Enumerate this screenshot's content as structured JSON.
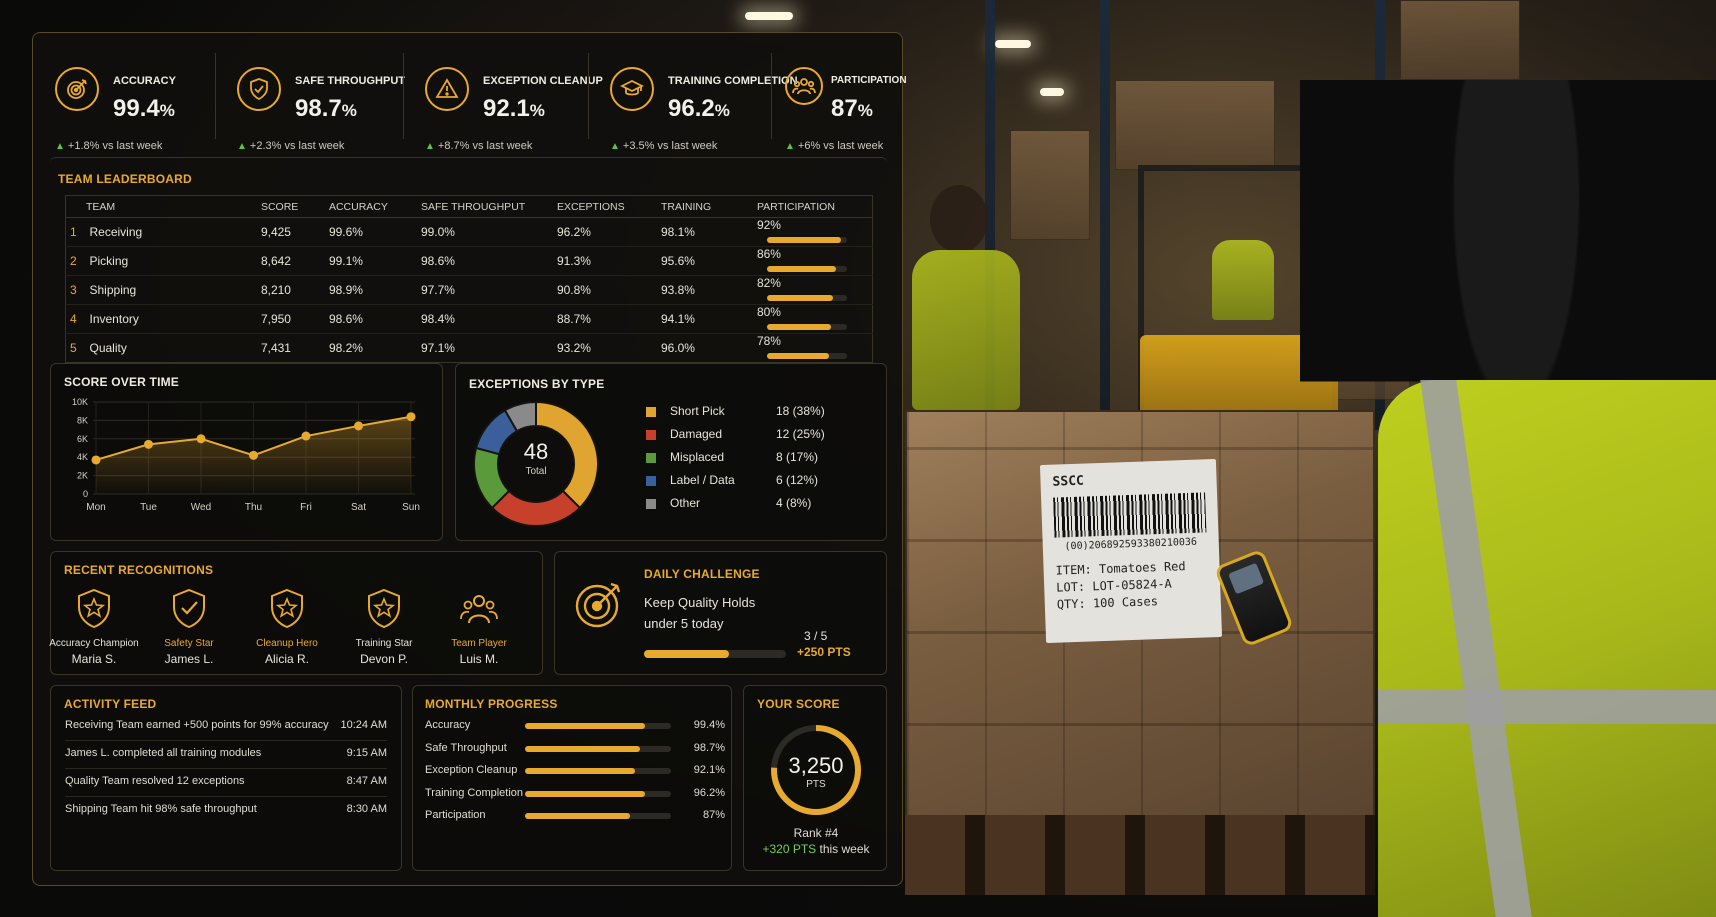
{
  "kpis": [
    {
      "label": "ACCURACY",
      "value": "99.4",
      "unit": "%",
      "delta": "+1.8% vs last week",
      "icon": "target-icon"
    },
    {
      "label": "SAFE THROUGHPUT",
      "value": "98.7",
      "unit": "%",
      "delta": "+2.3% vs last week",
      "icon": "shield-check-icon"
    },
    {
      "label": "EXCEPTION CLEANUP",
      "value": "92.1",
      "unit": "%",
      "delta": "+8.7% vs last week",
      "icon": "warning-icon"
    },
    {
      "label": "TRAINING COMPLETION",
      "value": "96.2",
      "unit": "%",
      "delta": "+3.5% vs last week",
      "icon": "graduation-cap-icon"
    },
    {
      "label": "PARTICIPATION",
      "value": "87",
      "unit": "%",
      "delta": "+6% vs last week",
      "icon": "team-icon"
    }
  ],
  "leaderboard": {
    "title": "TEAM LEADERBOARD",
    "columns": [
      "TEAM",
      "SCORE",
      "ACCURACY",
      "SAFE THROUGHPUT",
      "EXCEPTIONS",
      "TRAINING",
      "PARTICIPATION"
    ],
    "rows": [
      {
        "rank": "1",
        "team": "Receiving",
        "score": "9,425",
        "accuracy": "99.6%",
        "safe": "99.0%",
        "exceptions": "96.2%",
        "training": "98.1%",
        "participation": "92%",
        "participation_level": 0.92
      },
      {
        "rank": "2",
        "team": "Picking",
        "score": "8,642",
        "accuracy": "99.1%",
        "safe": "98.6%",
        "exceptions": "91.3%",
        "training": "95.6%",
        "participation": "86%",
        "participation_level": 0.86
      },
      {
        "rank": "3",
        "team": "Shipping",
        "score": "8,210",
        "accuracy": "98.9%",
        "safe": "97.7%",
        "exceptions": "90.8%",
        "training": "93.8%",
        "participation": "82%",
        "participation_level": 0.82
      },
      {
        "rank": "4",
        "team": "Inventory",
        "score": "7,950",
        "accuracy": "98.6%",
        "safe": "98.4%",
        "exceptions": "88.7%",
        "training": "94.1%",
        "participation": "80%",
        "participation_level": 0.8
      },
      {
        "rank": "5",
        "team": "Quality",
        "score": "7,431",
        "accuracy": "98.2%",
        "safe": "97.1%",
        "exceptions": "93.2%",
        "training": "96.0%",
        "participation": "78%",
        "participation_level": 0.78
      }
    ]
  },
  "score_over_time": {
    "title": "SCORE OVER TIME"
  },
  "exceptions": {
    "title": "EXCEPTIONS BY TYPE",
    "total": "48",
    "total_label": "Total",
    "items": [
      {
        "name": "Short Pick",
        "value": "18 (38%)",
        "count": 18,
        "color": "#e0a530"
      },
      {
        "name": "Damaged",
        "value": "12 (25%)",
        "count": 12,
        "color": "#c6402c"
      },
      {
        "name": "Misplaced",
        "value": "8 (17%)",
        "count": 8,
        "color": "#5a9a3a"
      },
      {
        "name": "Label / Data",
        "value": "6 (12%)",
        "count": 6,
        "color": "#3a5f9a"
      },
      {
        "name": "Other",
        "value": "4 (8%)",
        "count": 4,
        "color": "#8a8a8a"
      }
    ]
  },
  "recognitions": {
    "title": "RECENT RECOGNITIONS",
    "items": [
      {
        "title": "Accuracy Champion",
        "name": "Maria S.",
        "icon": "star-shield-icon",
        "title_color": "#e8e4da"
      },
      {
        "title": "Safety Star",
        "name": "James L.",
        "icon": "check-shield-icon",
        "title_color": "#e8aa2e"
      },
      {
        "title": "Cleanup Hero",
        "name": "Alicia R.",
        "icon": "star-shield-icon",
        "title_color": "#e8aa2e"
      },
      {
        "title": "Training Star",
        "name": "Devon P.",
        "icon": "star-shield-icon",
        "title_color": "#e8e4da"
      },
      {
        "title": "Team Player",
        "name": "Luis M.",
        "icon": "team-icon",
        "title_color": "#e8aa2e"
      }
    ]
  },
  "daily_challenge": {
    "title": "DAILY CHALLENGE",
    "description": "Keep Quality Holds under 5 today",
    "progress_text": "3 / 5",
    "progress_level": 0.6,
    "reward": "+250 PTS"
  },
  "activity": {
    "title": "ACTIVITY FEED",
    "items": [
      {
        "text": "Receiving Team earned +500 points for 99% accuracy",
        "time": "10:24 AM"
      },
      {
        "text": "James L. completed all training modules",
        "time": "9:15 AM"
      },
      {
        "text": "Quality Team resolved 12 exceptions",
        "time": "8:47 AM"
      },
      {
        "text": "Shipping Team hit 98% safe throughput",
        "time": "8:30 AM"
      }
    ]
  },
  "monthly_progress": {
    "title": "MONTHLY PROGRESS",
    "items": [
      {
        "name": "Accuracy",
        "value": "99.4%",
        "level": 0.82
      },
      {
        "name": "Safe Throughput",
        "value": "98.7%",
        "level": 0.79
      },
      {
        "name": "Exception Cleanup",
        "value": "92.1%",
        "level": 0.75
      },
      {
        "name": "Training Completion",
        "value": "96.2%",
        "level": 0.82
      },
      {
        "name": "Participation",
        "value": "87%",
        "level": 0.72
      }
    ]
  },
  "your_score": {
    "title": "YOUR SCORE",
    "value": "3,250",
    "unit": "PTS",
    "rank": "Rank #4",
    "weekly_points": "+320 PTS",
    "weekly_suffix": " this week"
  },
  "photo_label": {
    "sscc": "SSCC",
    "barcode": "(00)206892593380210036",
    "item": "ITEM: Tomatoes Red",
    "lot": "LOT: LOT-05824-A",
    "qty": "QTY: 100 Cases"
  },
  "chart_data": {
    "type": "area",
    "title": "SCORE OVER TIME",
    "x": [
      "Mon",
      "Tue",
      "Wed",
      "Thu",
      "Fri",
      "Sat",
      "Sun"
    ],
    "values": [
      3700,
      5400,
      6000,
      4200,
      6300,
      7400,
      8400
    ],
    "y_ticks": [
      "0",
      "2K",
      "4K",
      "6K",
      "8K",
      "10K"
    ],
    "ylim": [
      0,
      10000
    ],
    "grid": true
  },
  "colors": {
    "accent": "#e8aa2e",
    "positive": "#6fcf55",
    "panel_border": "#3a3426"
  }
}
